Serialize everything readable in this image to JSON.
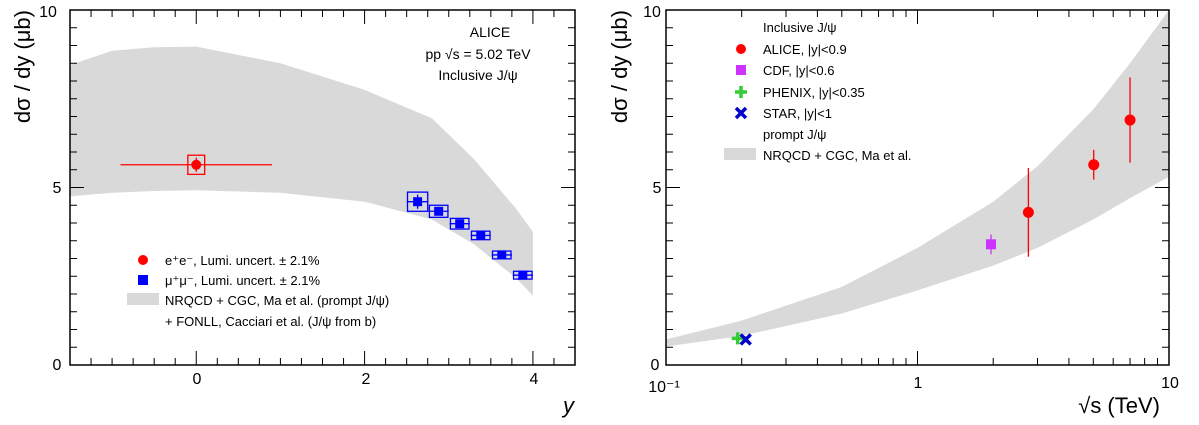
{
  "chart_data": [
    {
      "type": "scatter",
      "ylabel": "dσ / dy (μb)",
      "xlabel": "y",
      "xlim": [
        -1.5,
        4.5
      ],
      "ylim": [
        0,
        10
      ],
      "x_ticks": [
        "0",
        "2",
        "4"
      ],
      "y_ticks": [
        "0",
        "5",
        "10"
      ],
      "info_lines": [
        "ALICE",
        "pp √s = 5.02 TeV",
        "Inclusive J/ψ"
      ],
      "legend_position": "bottom-left",
      "legend": [
        {
          "label": "e⁺e⁻, Lumi. uncert. ± 2.1%",
          "marker": "circle",
          "color": "#ff0000"
        },
        {
          "label": "μ⁺μ⁻, Lumi. uncert. ± 2.1%",
          "marker": "square",
          "color": "#0000ff"
        },
        {
          "label": "NRQCD + CGC, Ma et al. (prompt J/ψ)",
          "marker": "band",
          "color": "#d9d9d9"
        },
        {
          "label": "+ FONLL, Cacciari et al. (J/ψ from b)",
          "marker": "none",
          "color": "#d9d9d9"
        }
      ],
      "series": [
        {
          "name": "e⁺e⁻, Lumi. uncert. ± 2.1%",
          "color": "#ff0000",
          "marker": "circle",
          "points": [
            {
              "x": 0.0,
              "y": 5.64,
              "xerr": 0.9,
              "yerr_stat": 0.2,
              "syst_dx": 0.1,
              "syst_dy": 0.27
            }
          ]
        },
        {
          "name": "μ⁺μ⁻, Lumi. uncert. ± 2.1%",
          "color": "#0000ff",
          "marker": "square",
          "points": [
            {
              "x": 2.63,
              "y": 4.6,
              "xerr": 0.13,
              "yerr_stat": 0.2,
              "syst_dx": 0.12,
              "syst_dy": 0.27
            },
            {
              "x": 2.88,
              "y": 4.33,
              "xerr": 0.12,
              "yerr_stat": 0.1,
              "syst_dx": 0.11,
              "syst_dy": 0.17
            },
            {
              "x": 3.13,
              "y": 3.98,
              "xerr": 0.12,
              "yerr_stat": 0.08,
              "syst_dx": 0.11,
              "syst_dy": 0.15
            },
            {
              "x": 3.38,
              "y": 3.65,
              "xerr": 0.12,
              "yerr_stat": 0.06,
              "syst_dx": 0.11,
              "syst_dy": 0.12
            },
            {
              "x": 3.63,
              "y": 3.1,
              "xerr": 0.12,
              "yerr_stat": 0.05,
              "syst_dx": 0.11,
              "syst_dy": 0.11
            },
            {
              "x": 3.88,
              "y": 2.53,
              "xerr": 0.12,
              "yerr_stat": 0.05,
              "syst_dx": 0.11,
              "syst_dy": 0.11
            }
          ]
        }
      ],
      "band": {
        "name": "NRQCD + CGC, Ma et al. (prompt J/ψ) + FONLL, Cacciari et al. (J/ψ from b)",
        "color": "#d9d9d9",
        "upper": [
          [
            -1.5,
            8.45
          ],
          [
            -1.0,
            8.85
          ],
          [
            -0.5,
            8.95
          ],
          [
            0.0,
            8.97
          ],
          [
            1.0,
            8.5
          ],
          [
            2.0,
            7.75
          ],
          [
            2.8,
            6.95
          ],
          [
            3.3,
            5.8
          ],
          [
            3.8,
            4.4
          ],
          [
            4.0,
            3.75
          ]
        ],
        "lower": [
          [
            -1.5,
            4.75
          ],
          [
            -1.0,
            4.85
          ],
          [
            -0.5,
            4.9
          ],
          [
            0.0,
            4.92
          ],
          [
            1.0,
            4.85
          ],
          [
            2.0,
            4.6
          ],
          [
            2.8,
            4.1
          ],
          [
            3.3,
            3.4
          ],
          [
            3.8,
            2.45
          ],
          [
            4.0,
            1.95
          ]
        ]
      }
    },
    {
      "type": "scatter",
      "ylabel": "dσ / dy (μb)",
      "xlabel": "√s (TeV)",
      "xscale": "log",
      "xlim": [
        0.1,
        10
      ],
      "ylim": [
        0,
        10
      ],
      "x_ticks": [
        "10⁻¹",
        "1",
        "10"
      ],
      "y_ticks": [
        "0",
        "5",
        "10"
      ],
      "legend_position": "top-left",
      "legend_header": "Inclusive J/ψ",
      "legend_subheader": "prompt J/ψ",
      "legend": [
        {
          "label": "ALICE, |y|<0.9",
          "marker": "circle",
          "color": "#ff0000"
        },
        {
          "label": "CDF, |y|<0.6",
          "marker": "square",
          "color": "#cc33ff"
        },
        {
          "label": "PHENIX, |y|<0.35",
          "marker": "plus",
          "color": "#33cc33"
        },
        {
          "label": "STAR, |y|<1",
          "marker": "cross",
          "color": "#0000cc"
        },
        {
          "label": "NRQCD + CGC, Ma et al.",
          "marker": "band",
          "color": "#d9d9d9"
        }
      ],
      "series": [
        {
          "name": "ALICE, |y|<0.9",
          "color": "#ff0000",
          "marker": "circle",
          "points": [
            {
              "x": 2.76,
              "y": 4.3,
              "yerr": 1.25
            },
            {
              "x": 5.02,
              "y": 5.64,
              "yerr": 0.42
            },
            {
              "x": 7.0,
              "y": 6.9,
              "yerr": 1.2
            }
          ]
        },
        {
          "name": "CDF, |y|<0.6",
          "color": "#cc33ff",
          "marker": "square",
          "points": [
            {
              "x": 1.96,
              "y": 3.4,
              "yerr": 0.28
            }
          ]
        },
        {
          "name": "PHENIX, |y|<0.35",
          "color": "#33cc33",
          "marker": "plus",
          "points": [
            {
              "x": 0.2,
              "y": 0.75,
              "yerr": 0.08
            }
          ]
        },
        {
          "name": "STAR, |y|<1",
          "color": "#0000cc",
          "marker": "cross",
          "points": [
            {
              "x": 0.2,
              "y": 0.72,
              "yerr": 0.08
            }
          ]
        }
      ],
      "band": {
        "name": "NRQCD + CGC, Ma et al.",
        "color": "#d9d9d9",
        "upper": [
          [
            0.1,
            0.72
          ],
          [
            0.2,
            1.25
          ],
          [
            0.5,
            2.2
          ],
          [
            1.0,
            3.3
          ],
          [
            2.0,
            4.6
          ],
          [
            3.0,
            5.6
          ],
          [
            5.0,
            7.2
          ],
          [
            7.0,
            8.5
          ],
          [
            10.0,
            10.0
          ]
        ],
        "lower": [
          [
            0.1,
            0.52
          ],
          [
            0.2,
            0.82
          ],
          [
            0.5,
            1.45
          ],
          [
            1.0,
            2.1
          ],
          [
            2.0,
            2.8
          ],
          [
            3.0,
            3.3
          ],
          [
            5.0,
            4.1
          ],
          [
            7.0,
            4.7
          ],
          [
            10.0,
            5.3
          ]
        ]
      }
    }
  ]
}
